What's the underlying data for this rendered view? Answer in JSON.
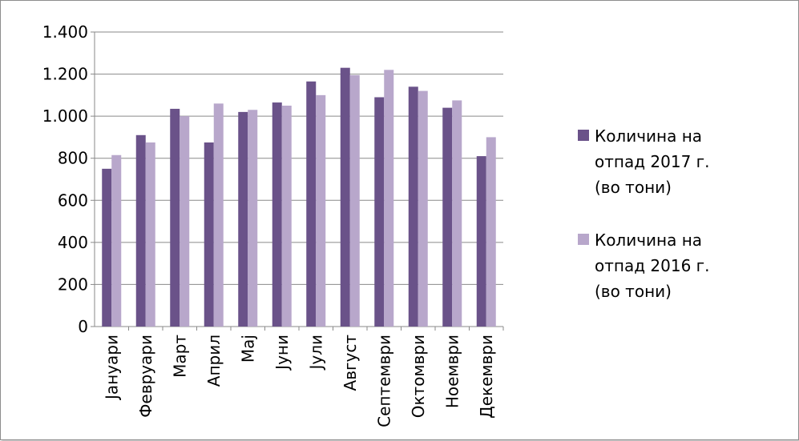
{
  "chart_data": {
    "type": "bar",
    "categories": [
      "Јануари",
      "Февруари",
      "Март",
      "Април",
      "Мај",
      "Јуни",
      "Јули",
      "Август",
      "Септември",
      "Октомври",
      "Ноември",
      "Декември"
    ],
    "series": [
      {
        "name": "Количина на\nотпад 2017 г.\n(во тони)",
        "color": "#6a5289",
        "values": [
          750,
          910,
          1035,
          875,
          1020,
          1065,
          1165,
          1230,
          1090,
          1140,
          1040,
          810
        ]
      },
      {
        "name": "Количина на\nотпад   2016 г.\n(во тони)",
        "color": "#b8a7cb",
        "values": [
          815,
          875,
          1000,
          1060,
          1030,
          1050,
          1100,
          1195,
          1220,
          1120,
          1075,
          900
        ]
      }
    ],
    "ylim": [
      0,
      1400
    ],
    "yticks": [
      0,
      200,
      400,
      600,
      800,
      1000,
      1200,
      1400
    ],
    "ytick_labels": [
      "0",
      "200",
      "400",
      "600",
      "800",
      "1.000",
      "1.200",
      "1.400"
    ],
    "grid": true,
    "legend": "right",
    "title": "",
    "xlabel": "",
    "ylabel": ""
  }
}
